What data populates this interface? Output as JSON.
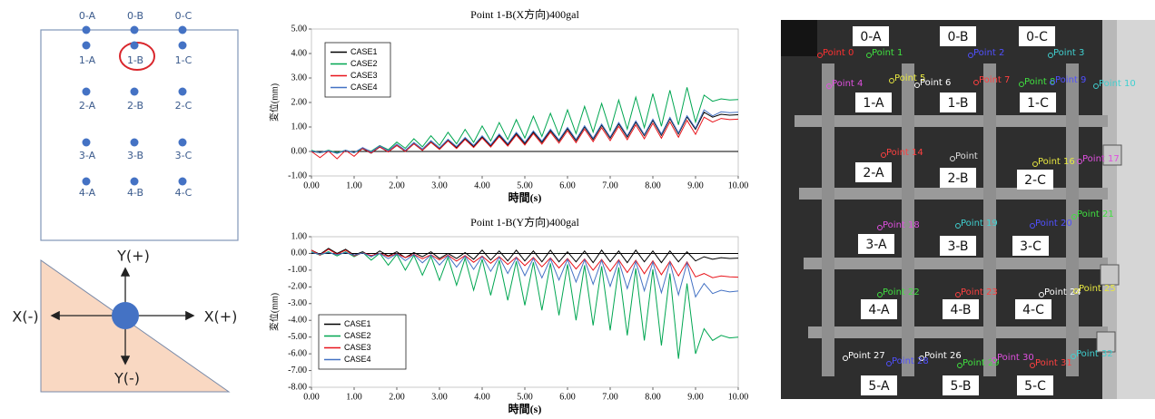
{
  "chart_data": [
    {
      "type": "line",
      "title": "Point 1-B(X方向)400gal",
      "x_label": "時間(s)",
      "y_label": "変位(mm)",
      "legend_position": "upper left",
      "grid": false,
      "xlim": [
        0,
        10
      ],
      "ylim": [
        -1,
        5
      ],
      "xticks": [
        {
          "value": 0,
          "label": "0.00"
        },
        {
          "value": 1,
          "label": "1.00"
        },
        {
          "value": 2,
          "label": "2.00"
        },
        {
          "value": 3,
          "label": "3.00"
        },
        {
          "value": 4,
          "label": "4.00"
        },
        {
          "value": 5,
          "label": "5.00"
        },
        {
          "value": 6,
          "label": "6.00"
        },
        {
          "value": 7,
          "label": "7.00"
        },
        {
          "value": 8,
          "label": "8.00"
        },
        {
          "value": 9,
          "label": "9.00"
        },
        {
          "value": 10,
          "label": "10.00"
        }
      ],
      "yticks": [
        {
          "value": -1,
          "label": "-1.00"
        },
        {
          "value": 0,
          "label": "0.00"
        },
        {
          "value": 1,
          "label": "1.00"
        },
        {
          "value": 2,
          "label": "2.00"
        },
        {
          "value": 3,
          "label": "3.00"
        },
        {
          "value": 4,
          "label": "4.00"
        },
        {
          "value": 5,
          "label": "5.00"
        }
      ],
      "x": [
        0,
        0.2,
        0.4,
        0.6,
        0.8,
        1,
        1.2,
        1.4,
        1.6,
        1.8,
        2,
        2.2,
        2.4,
        2.6,
        2.8,
        3,
        3.2,
        3.4,
        3.6,
        3.8,
        4,
        4.2,
        4.4,
        4.6,
        4.8,
        5,
        5.2,
        5.4,
        5.6,
        5.8,
        6,
        6.2,
        6.4,
        6.6,
        6.8,
        7,
        7.2,
        7.4,
        7.6,
        7.8,
        8,
        8.2,
        8.4,
        8.6,
        8.8,
        9,
        9.2,
        9.4,
        9.6,
        9.8,
        10
      ],
      "series": [
        {
          "name": "CASE1",
          "color": "#000000",
          "values": [
            0,
            -0.05,
            0.01,
            -0.06,
            0.02,
            -0.04,
            0.11,
            -0.07,
            0.18,
            -0.02,
            0.25,
            0,
            0.32,
            0.05,
            0.39,
            0.1,
            0.45,
            0.15,
            0.52,
            0.2,
            0.59,
            0.22,
            0.66,
            0.27,
            0.73,
            0.32,
            0.79,
            0.37,
            0.86,
            0.42,
            0.93,
            0.44,
            1,
            0.49,
            1.07,
            0.54,
            1.13,
            0.59,
            1.2,
            0.64,
            1.27,
            0.66,
            1.34,
            0.71,
            1.41,
            0.9,
            1.6,
            1.4,
            1.52,
            1.48,
            1.5
          ]
        },
        {
          "name": "CASE2",
          "color": "#00a651",
          "values": [
            0.05,
            -0.05,
            0.05,
            -0.05,
            0.05,
            -0.05,
            0.12,
            0.01,
            0.24,
            0.07,
            0.38,
            0.13,
            0.52,
            0.19,
            0.64,
            0.25,
            0.78,
            0.31,
            0.9,
            0.37,
            1.04,
            0.43,
            1.18,
            0.49,
            1.3,
            0.55,
            1.44,
            0.61,
            1.56,
            0.67,
            1.7,
            0.73,
            1.84,
            0.79,
            1.96,
            0.85,
            2.1,
            0.91,
            2.22,
            0.97,
            2.36,
            1.03,
            2.5,
            1.09,
            2.62,
            1.2,
            2.3,
            2.05,
            2.15,
            2.1,
            2.12
          ]
        },
        {
          "name": "CASE3",
          "color": "#e8141b",
          "values": [
            0,
            -0.25,
            0.02,
            -0.3,
            0.05,
            -0.2,
            0.13,
            -0.06,
            0.19,
            -0.02,
            0.25,
            0,
            0.31,
            0.04,
            0.37,
            0.08,
            0.43,
            0.12,
            0.49,
            0.16,
            0.55,
            0.18,
            0.61,
            0.22,
            0.67,
            0.26,
            0.73,
            0.3,
            0.79,
            0.34,
            0.85,
            0.36,
            0.91,
            0.4,
            0.97,
            0.44,
            1.03,
            0.48,
            1.09,
            0.52,
            1.15,
            0.54,
            1.21,
            0.58,
            1.27,
            0.7,
            1.4,
            1.2,
            1.35,
            1.3,
            1.32
          ]
        },
        {
          "name": "CASE4",
          "color": "#4472c4",
          "values": [
            0.02,
            -0.05,
            0.03,
            -0.08,
            0.05,
            -0.05,
            0.16,
            -0.02,
            0.23,
            0.03,
            0.3,
            0.05,
            0.37,
            0.1,
            0.44,
            0.15,
            0.5,
            0.2,
            0.57,
            0.25,
            0.64,
            0.27,
            0.71,
            0.32,
            0.78,
            0.37,
            0.84,
            0.42,
            0.91,
            0.47,
            0.98,
            0.49,
            1.05,
            0.54,
            1.12,
            0.59,
            1.18,
            0.64,
            1.25,
            0.69,
            1.32,
            0.71,
            1.39,
            0.76,
            1.46,
            0.95,
            1.7,
            1.45,
            1.62,
            1.58,
            1.6
          ]
        }
      ]
    },
    {
      "type": "line",
      "title": "Point 1-B(Y方向)400gal",
      "x_label": "時間(s)",
      "y_label": "変位(mm)",
      "legend_position": "lower left",
      "grid": false,
      "xlim": [
        0,
        10
      ],
      "ylim": [
        -8,
        1
      ],
      "xticks": [
        {
          "value": 0,
          "label": "0.00"
        },
        {
          "value": 1,
          "label": "1.00"
        },
        {
          "value": 2,
          "label": "2.00"
        },
        {
          "value": 3,
          "label": "3.00"
        },
        {
          "value": 4,
          "label": "4.00"
        },
        {
          "value": 5,
          "label": "5.00"
        },
        {
          "value": 6,
          "label": "6.00"
        },
        {
          "value": 7,
          "label": "7.00"
        },
        {
          "value": 8,
          "label": "8.00"
        },
        {
          "value": 9,
          "label": "9.00"
        },
        {
          "value": 10,
          "label": "10.00"
        }
      ],
      "yticks": [
        {
          "value": -8,
          "label": "-8.00"
        },
        {
          "value": -7,
          "label": "-7.00"
        },
        {
          "value": -6,
          "label": "-6.00"
        },
        {
          "value": -5,
          "label": "-5.00"
        },
        {
          "value": -4,
          "label": "-4.00"
        },
        {
          "value": -3,
          "label": "-3.00"
        },
        {
          "value": -2,
          "label": "-2.00"
        },
        {
          "value": -1,
          "label": "-1.00"
        },
        {
          "value": 0,
          "label": "0.00"
        },
        {
          "value": 1,
          "label": "1.00"
        }
      ],
      "x": [
        0,
        0.2,
        0.4,
        0.6,
        0.8,
        1,
        1.2,
        1.4,
        1.6,
        1.8,
        2,
        2.2,
        2.4,
        2.6,
        2.8,
        3,
        3.2,
        3.4,
        3.6,
        3.8,
        4,
        4.2,
        4.4,
        4.6,
        4.8,
        5,
        5.2,
        5.4,
        5.6,
        5.8,
        6,
        6.2,
        6.4,
        6.6,
        6.8,
        7,
        7.2,
        7.4,
        7.6,
        7.8,
        8,
        8.2,
        8.4,
        8.6,
        8.8,
        9,
        9.2,
        9.4,
        9.6,
        9.8,
        10
      ],
      "series": [
        {
          "name": "CASE1",
          "color": "#000000",
          "values": [
            0.2,
            -0.05,
            0.3,
            0,
            0.25,
            -0.1,
            0.1,
            -0.2,
            0.15,
            -0.15,
            0.1,
            -0.25,
            0.05,
            -0.2,
            0.1,
            -0.3,
            0,
            -0.3,
            0.05,
            -0.35,
            0.2,
            -0.4,
            0.15,
            -0.45,
            0.2,
            -0.45,
            0.15,
            -0.5,
            0.2,
            -0.5,
            0.1,
            -0.5,
            0.15,
            -0.55,
            0.2,
            -0.5,
            0.15,
            -0.55,
            0.2,
            -0.5,
            0.15,
            -0.55,
            0.15,
            -0.5,
            0.1,
            -0.45,
            -0.2,
            -0.35,
            -0.25,
            -0.3,
            -0.28
          ]
        },
        {
          "name": "CASE2",
          "color": "#00a651",
          "values": [
            0.1,
            -0.1,
            0.1,
            -0.15,
            0.1,
            -0.2,
            0.07,
            -0.4,
            0.01,
            -0.7,
            -0.05,
            -1,
            -0.11,
            -1.3,
            -0.17,
            -1.6,
            -0.23,
            -1.9,
            -0.29,
            -2.2,
            -0.35,
            -2.5,
            -0.41,
            -2.8,
            -0.47,
            -3.1,
            -0.53,
            -3.4,
            -0.59,
            -3.7,
            -0.65,
            -4,
            -0.71,
            -4.3,
            -0.77,
            -4.6,
            -0.83,
            -4.9,
            -0.89,
            -5.2,
            -0.95,
            -5.5,
            -1.2,
            -6.3,
            -1.8,
            -6,
            -4.5,
            -5.2,
            -4.9,
            -5.05,
            -5
          ]
        },
        {
          "name": "CASE3",
          "color": "#e8141b",
          "values": [
            0.2,
            -0.1,
            0.25,
            -0.05,
            0.2,
            -0.15,
            0.04,
            -0.12,
            0.01,
            -0.19,
            -0.02,
            -0.25,
            -0.05,
            -0.32,
            -0.08,
            -0.39,
            -0.1,
            -0.46,
            -0.13,
            -0.53,
            -0.16,
            -0.59,
            -0.19,
            -0.66,
            -0.22,
            -0.73,
            -0.24,
            -0.8,
            -0.27,
            -0.87,
            -0.3,
            -0.93,
            -0.33,
            -1,
            -0.36,
            -1.07,
            -0.38,
            -1.14,
            -0.41,
            -1.21,
            -0.44,
            -1.27,
            -0.47,
            -1.34,
            -0.5,
            -1.4,
            -1.2,
            -1.45,
            -1.35,
            -1.4,
            -1.42
          ]
        },
        {
          "name": "CASE4",
          "color": "#4472c4",
          "values": [
            0.05,
            -0.05,
            0.05,
            -0.08,
            0.05,
            -0.1,
            0.03,
            -0.18,
            0,
            -0.31,
            -0.03,
            -0.43,
            -0.06,
            -0.56,
            -0.09,
            -0.69,
            -0.13,
            -0.82,
            -0.16,
            -0.95,
            -0.19,
            -1.07,
            -0.22,
            -1.2,
            -0.25,
            -1.33,
            -0.29,
            -1.46,
            -0.32,
            -1.59,
            -0.35,
            -1.71,
            -0.38,
            -1.84,
            -0.41,
            -1.97,
            -0.45,
            -2.1,
            -0.48,
            -2.23,
            -0.51,
            -2.35,
            -0.54,
            -2.48,
            -0.57,
            -2.6,
            -1.8,
            -2.4,
            -2.2,
            -2.3,
            -2.25
          ]
        }
      ]
    }
  ],
  "diagram": {
    "grid_labels": [
      [
        "0-A",
        "0-B",
        "0-C"
      ],
      [
        "1-A",
        "1-B",
        "1-C"
      ],
      [
        "2-A",
        "2-B",
        "2-C"
      ],
      [
        "3-A",
        "3-B",
        "3-C"
      ],
      [
        "4-A",
        "4-B",
        "4-C"
      ]
    ],
    "y_plus": "Y(+)",
    "x_minus": "X(-)",
    "x_plus": "X(+)",
    "y_minus": "Y(-)"
  },
  "photo": {
    "cell_labels": [
      "0-A",
      "0-B",
      "0-C",
      "1-A",
      "1-B",
      "1-C",
      "2-A",
      "2-B",
      "2-C",
      "3-A",
      "3-B",
      "3-C",
      "4-A",
      "4-B",
      "4-C",
      "5-A",
      "5-B",
      "5-C"
    ],
    "point_labels": [
      "Point 0",
      "Point 1",
      "Point 2",
      "Point 3",
      "Point 4",
      "Point 5",
      "Point 6",
      "Point 7",
      "Point 8",
      "Point 9",
      "Point 10",
      "Point 14",
      "Point",
      "Point 16",
      "Point 17",
      "Point 18",
      "Point 19",
      "Point 20",
      "Point 21",
      "Point 22",
      "Point 23",
      "Point 24",
      "Point 25",
      "Point 26",
      "Point 27",
      "Point 28",
      "Point 29",
      "Point 30",
      "Point 31",
      "Point 32"
    ]
  }
}
